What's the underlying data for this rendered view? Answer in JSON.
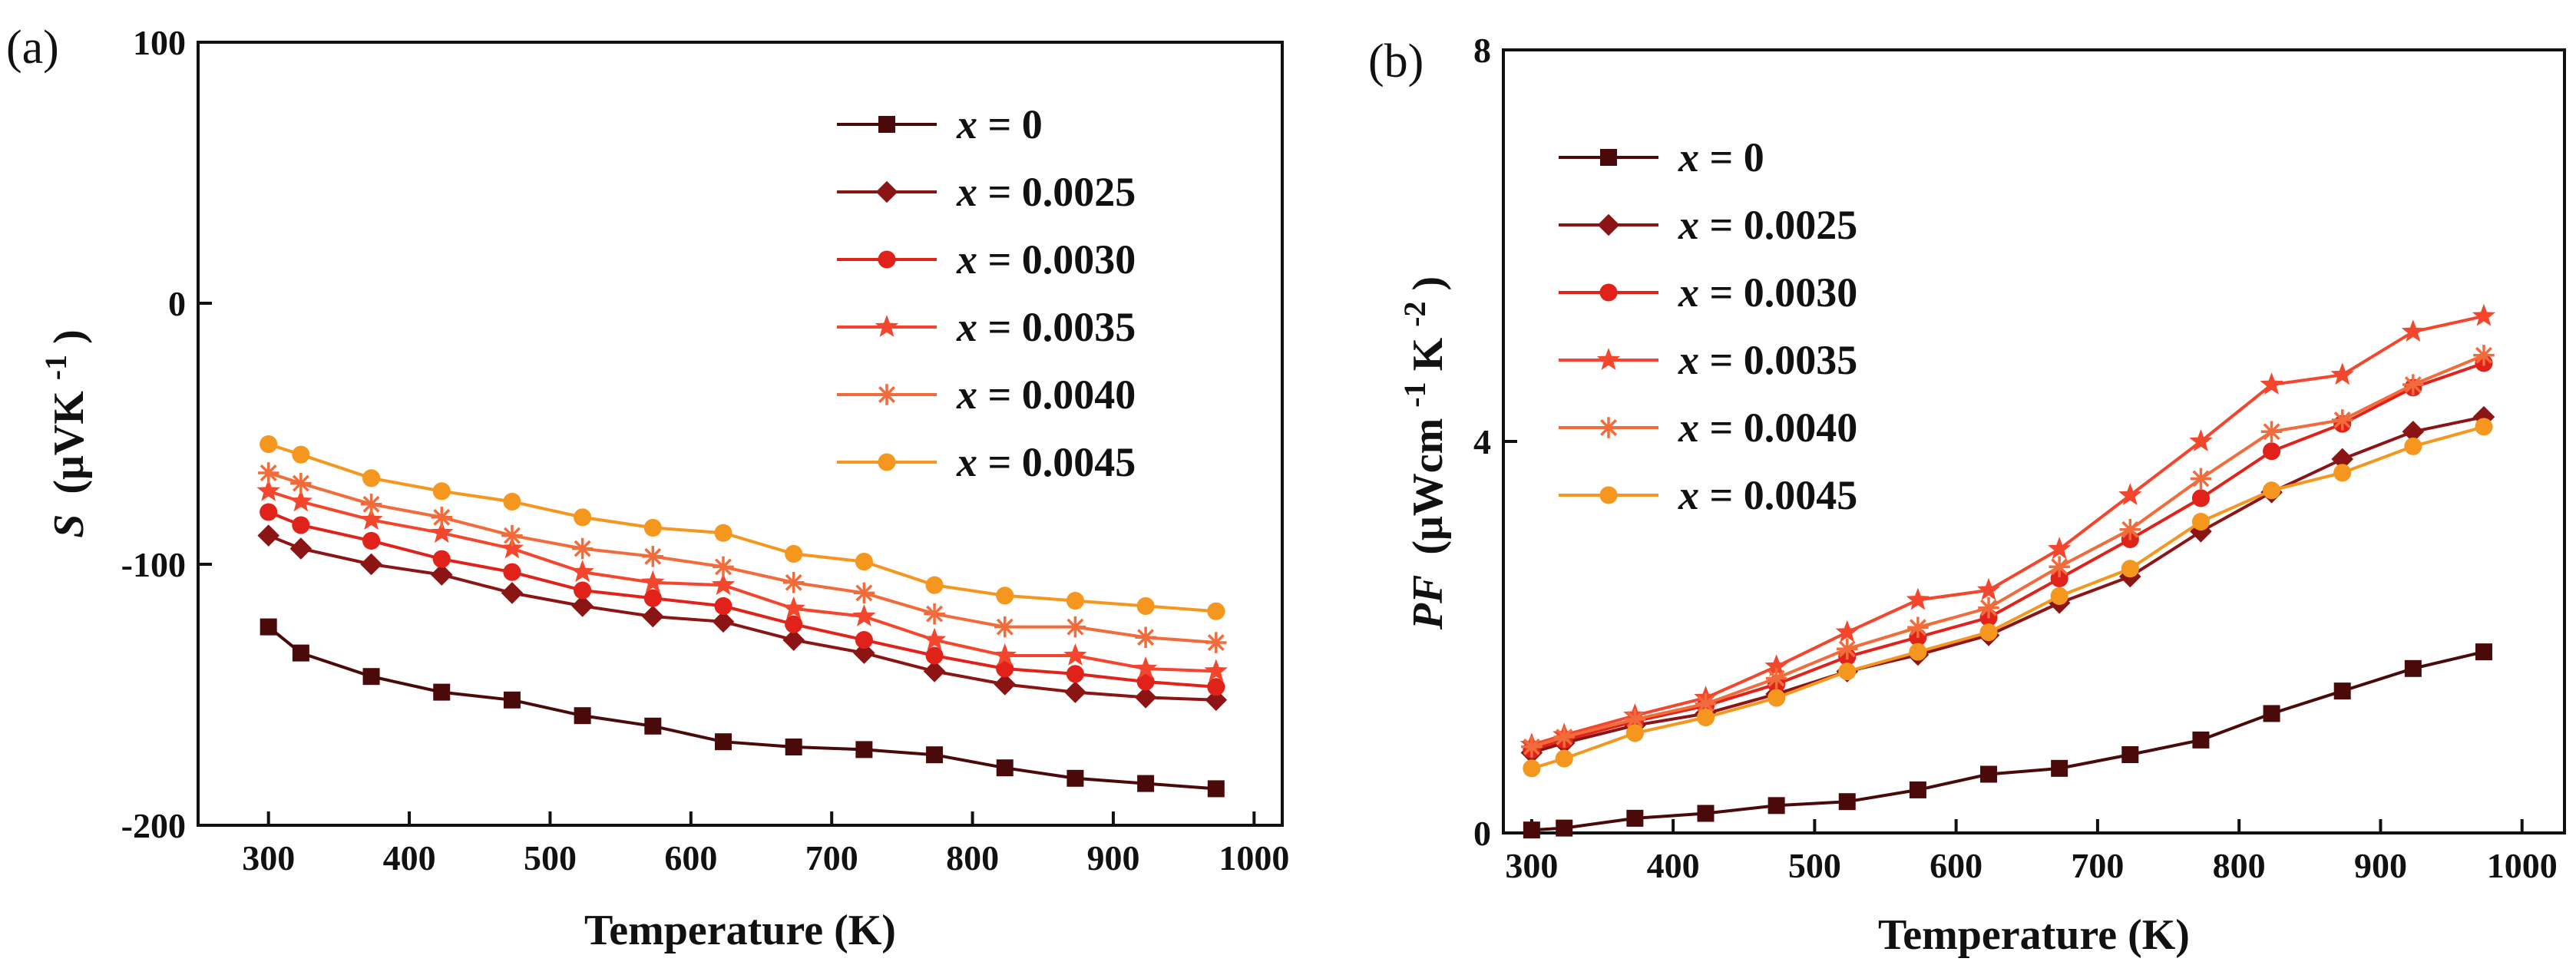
{
  "chart_data": [
    {
      "type": "line",
      "panel_label": "(a)",
      "xlabel": "Temperature (K)",
      "ylabel_symbol": "S",
      "ylabel_unit": "(μVK",
      "ylabel_exp": "-1",
      "ylabel_close": ")",
      "xlim": [
        250,
        1020
      ],
      "ylim": [
        -200,
        100
      ],
      "xticks": [
        300,
        400,
        500,
        600,
        700,
        800,
        900,
        1000
      ],
      "yticks": [
        -200,
        -100,
        0,
        100
      ],
      "xtick_labels": [
        "300",
        "400",
        "500",
        "600",
        "700",
        "800",
        "900",
        "1000"
      ],
      "ytick_labels": [
        "-200",
        "-100",
        "0",
        "100"
      ],
      "legend_position": "top-right",
      "x": [
        300,
        323,
        373,
        423,
        473,
        523,
        573,
        623,
        673,
        723,
        773,
        823,
        873,
        923,
        973
      ],
      "series": [
        {
          "var": "x",
          "eq": " = 0",
          "color": "#4a0a0a",
          "marker": "square",
          "values": [
            -124,
            -134,
            -143,
            -149,
            -152,
            -158,
            -162,
            -168,
            -170,
            -171,
            -173,
            -178,
            -182,
            -184,
            -186
          ]
        },
        {
          "var": "x",
          "eq": " = 0.0025",
          "color": "#8b1414",
          "marker": "diamond",
          "values": [
            -89,
            -94,
            -100,
            -104,
            -111,
            -116,
            -120,
            -122,
            -129,
            -134,
            -141,
            -146,
            -149,
            -151,
            -152
          ]
        },
        {
          "var": "x",
          "eq": " = 0.0030",
          "color": "#e0221b",
          "marker": "circle",
          "values": [
            -80,
            -85,
            -91,
            -98,
            -103,
            -110,
            -113,
            -116,
            -123,
            -129,
            -135,
            -140,
            -142,
            -145,
            -147
          ]
        },
        {
          "var": "x",
          "eq": " = 0.0035",
          "color": "#f4452d",
          "marker": "star",
          "values": [
            -72,
            -76,
            -83,
            -88,
            -94,
            -103,
            -107,
            -108,
            -117,
            -120,
            -129,
            -135,
            -135,
            -140,
            -141
          ]
        },
        {
          "var": "x",
          "eq": " = 0.0040",
          "color": "#f26b3b",
          "marker": "asterisk",
          "values": [
            -65,
            -69,
            -77,
            -82,
            -89,
            -94,
            -97,
            -101,
            -107,
            -111,
            -119,
            -124,
            -124,
            -128,
            -130
          ]
        },
        {
          "var": "x",
          "eq": " = 0.0045",
          "color": "#f5961e",
          "marker": "circle",
          "values": [
            -54,
            -58,
            -67,
            -72,
            -76,
            -82,
            -86,
            -88,
            -96,
            -99,
            -108,
            -112,
            -114,
            -116,
            -118
          ]
        }
      ]
    },
    {
      "type": "line",
      "panel_label": "(b)",
      "xlabel": "Temperature (K)",
      "ylabel_symbol": "PF",
      "ylabel_unit": "(μWcm",
      "ylabel_exp1": "-1",
      "ylabel_mid": "K",
      "ylabel_exp2": "-2",
      "ylabel_close": ")",
      "xlim": [
        280,
        1030
      ],
      "ylim": [
        0,
        8
      ],
      "xticks": [
        300,
        400,
        500,
        600,
        700,
        800,
        900,
        1000
      ],
      "yticks": [
        0,
        4,
        8
      ],
      "xtick_labels": [
        "300",
        "400",
        "500",
        "600",
        "700",
        "800",
        "900",
        "1000"
      ],
      "ytick_labels": [
        "0",
        "4",
        "8"
      ],
      "legend_position": "top-left",
      "x": [
        300,
        323,
        373,
        423,
        473,
        523,
        573,
        623,
        673,
        723,
        773,
        823,
        873,
        923,
        973
      ],
      "series": [
        {
          "var": "x",
          "eq": " = 0",
          "color": "#4a0a0a",
          "marker": "square",
          "values": [
            0.03,
            0.05,
            0.15,
            0.2,
            0.28,
            0.32,
            0.44,
            0.6,
            0.66,
            0.8,
            0.95,
            1.22,
            1.45,
            1.68,
            1.85
          ]
        },
        {
          "var": "x",
          "eq": " = 0.0025",
          "color": "#8b1414",
          "marker": "diamond",
          "values": [
            0.82,
            0.92,
            1.1,
            1.22,
            1.42,
            1.65,
            1.82,
            2.02,
            2.35,
            2.62,
            3.08,
            3.48,
            3.82,
            4.1,
            4.25
          ]
        },
        {
          "var": "x",
          "eq": " = 0.0030",
          "color": "#e0221b",
          "marker": "circle",
          "values": [
            0.85,
            0.95,
            1.14,
            1.3,
            1.52,
            1.8,
            2.0,
            2.2,
            2.6,
            3.0,
            3.42,
            3.9,
            4.18,
            4.55,
            4.8
          ]
        },
        {
          "var": "x",
          "eq": " = 0.0035",
          "color": "#f4452d",
          "marker": "star",
          "values": [
            0.9,
            1.0,
            1.2,
            1.38,
            1.7,
            2.05,
            2.38,
            2.48,
            2.9,
            3.45,
            4.0,
            4.58,
            4.68,
            5.12,
            5.28
          ]
        },
        {
          "var": "x",
          "eq": " = 0.0040",
          "color": "#f26b3b",
          "marker": "asterisk",
          "values": [
            0.88,
            0.98,
            1.16,
            1.32,
            1.58,
            1.88,
            2.1,
            2.3,
            2.72,
            3.1,
            3.62,
            4.1,
            4.22,
            4.58,
            4.88
          ]
        },
        {
          "var": "x",
          "eq": " = 0.0045",
          "color": "#f5961e",
          "marker": "circle",
          "values": [
            0.66,
            0.76,
            1.02,
            1.18,
            1.38,
            1.65,
            1.85,
            2.05,
            2.42,
            2.7,
            3.18,
            3.5,
            3.68,
            3.95,
            4.15
          ]
        }
      ]
    }
  ]
}
